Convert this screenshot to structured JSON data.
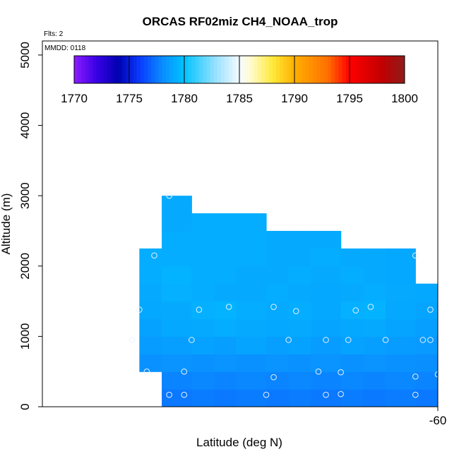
{
  "chart_data": {
    "type": "heatmap",
    "title": "ORCAS RF02miz CH4_NOAA_trop",
    "xlabel": "Latitude (deg N)",
    "ylabel": "Altitude (m)",
    "x_tick_labels": [
      "-60"
    ],
    "y_ticks": [
      0,
      1000,
      2000,
      3000,
      4000,
      5000
    ],
    "y_tick_labels": [
      "0",
      "1000",
      "2000",
      "3000",
      "4000",
      "5000"
    ],
    "ylim": [
      0,
      5200
    ],
    "xlim": [
      -65.3,
      -60
    ],
    "annotations": {
      "flights": "Flts: 2",
      "date": "MMDD: 0118"
    },
    "colorbar": {
      "ticks": [
        1770,
        1775,
        1780,
        1785,
        1790,
        1795,
        1800
      ],
      "tick_labels": [
        "1770",
        "1775",
        "1780",
        "1785",
        "1790",
        "1795",
        "1800"
      ],
      "range": [
        1770,
        1800
      ],
      "stops": [
        {
          "value": 1770,
          "color": "#8c1cff"
        },
        {
          "value": 1772,
          "color": "#3a00e6"
        },
        {
          "value": 1774,
          "color": "#0000b0"
        },
        {
          "value": 1776,
          "color": "#0a3cff"
        },
        {
          "value": 1778,
          "color": "#0a8cff"
        },
        {
          "value": 1780,
          "color": "#00c3ff"
        },
        {
          "value": 1783,
          "color": "#9fe3ff"
        },
        {
          "value": 1785,
          "color": "#f4fbff"
        },
        {
          "value": 1786,
          "color": "#fffbd0"
        },
        {
          "value": 1788,
          "color": "#ffea3a"
        },
        {
          "value": 1790,
          "color": "#ffb000"
        },
        {
          "value": 1793,
          "color": "#ff7000"
        },
        {
          "value": 1795,
          "color": "#ff0000"
        },
        {
          "value": 1798,
          "color": "#c00000"
        },
        {
          "value": 1800,
          "color": "#8e1c1c"
        }
      ]
    },
    "cells": [
      {
        "x0": -64.0,
        "x1": -63.7,
        "y0": 500,
        "y1": 2250,
        "v": 1779.2
      },
      {
        "x0": -63.7,
        "x1": -63.3,
        "y0": 0,
        "y1": 3000,
        "v": 1779.0
      },
      {
        "x0": -63.3,
        "x1": -62.3,
        "y0": 0,
        "y1": 2750,
        "v": 1779.1
      },
      {
        "x0": -62.3,
        "x1": -61.3,
        "y0": 0,
        "y1": 2500,
        "v": 1779.0
      },
      {
        "x0": -61.3,
        "x1": -60.3,
        "y0": 0,
        "y1": 2250,
        "v": 1779.0
      },
      {
        "x0": -60.3,
        "x1": -60.0,
        "y0": 0,
        "y1": 1750,
        "v": 1778.8
      },
      {
        "x0": -60.0,
        "x1": -59.7,
        "y0": 0,
        "y1": 1500,
        "v": 1778.5
      }
    ],
    "tiles": {
      "x_edges": [
        -64.0,
        -63.7,
        -63.3,
        -63.0,
        -62.7,
        -62.3,
        -62.0,
        -61.7,
        -61.3,
        -61.0,
        -60.7,
        -60.3,
        -60.0,
        -59.7
      ],
      "y_edges": [
        0,
        250,
        500,
        750,
        1000,
        1250,
        1500,
        1750,
        2000,
        2250,
        2500,
        2750,
        3000
      ],
      "values": [
        [
          null,
          1777.5,
          1777.6,
          1777.5,
          1777.6,
          1777.5,
          1777.6,
          1777.5,
          1777.6,
          1777.5,
          1777.6,
          1777.5,
          1777.4
        ],
        [
          null,
          1777.8,
          1777.9,
          1777.8,
          1777.9,
          1777.8,
          1777.9,
          1777.8,
          1777.9,
          1777.8,
          1777.9,
          1777.8,
          1777.7
        ],
        [
          1778.2,
          1778.3,
          1778.2,
          1778.3,
          1778.2,
          1778.3,
          1778.2,
          1778.3,
          1778.2,
          1778.3,
          1778.2,
          1778.1,
          1778.0
        ],
        [
          1778.6,
          1778.7,
          1778.8,
          1778.7,
          1778.9,
          1778.7,
          1778.8,
          1778.6,
          1778.8,
          1778.7,
          1778.6,
          1778.5,
          1778.4
        ],
        [
          1778.8,
          1779.0,
          1779.1,
          1779.2,
          1779.1,
          1779.0,
          1779.1,
          1778.9,
          1779.0,
          1779.1,
          1778.9,
          1778.7,
          1778.6
        ],
        [
          1779.0,
          1779.1,
          1779.3,
          1779.4,
          1779.2,
          1779.1,
          1779.2,
          1779.0,
          1779.3,
          1779.4,
          1779.0,
          1778.9,
          1778.8
        ],
        [
          1779.1,
          1779.3,
          1779.2,
          1779.1,
          1779.1,
          1779.2,
          1779.1,
          1779.0,
          1779.1,
          1779.2,
          1779.1,
          1779.0,
          null
        ],
        [
          1779.2,
          1779.4,
          1779.2,
          1779.2,
          1779.1,
          1779.1,
          1779.2,
          1779.1,
          1779.2,
          1779.1,
          1779.0,
          null,
          null
        ],
        [
          1779.2,
          1779.2,
          1779.2,
          1779.2,
          1779.2,
          1779.1,
          1779.1,
          1779.2,
          1779.1,
          1779.1,
          1779.0,
          null,
          null
        ],
        [
          null,
          1779.2,
          1779.2,
          1779.2,
          1779.2,
          1779.1,
          1779.1,
          1779.1,
          null,
          null,
          null,
          null,
          null
        ],
        [
          null,
          1779.1,
          1779.2,
          1779.2,
          1779.2,
          null,
          null,
          null,
          null,
          null,
          null,
          null,
          null
        ],
        [
          null,
          1779.1,
          null,
          null,
          null,
          null,
          null,
          null,
          null,
          null,
          null,
          null,
          null
        ]
      ]
    },
    "points": [
      {
        "x": -63.6,
        "y": 170
      },
      {
        "x": -63.4,
        "y": 170
      },
      {
        "x": -62.3,
        "y": 170
      },
      {
        "x": -61.5,
        "y": 170
      },
      {
        "x": -61.3,
        "y": 180
      },
      {
        "x": -60.3,
        "y": 170
      },
      {
        "x": -59.8,
        "y": 180
      },
      {
        "x": -62.2,
        "y": 420
      },
      {
        "x": -60.3,
        "y": 430
      },
      {
        "x": -60.0,
        "y": 460
      },
      {
        "x": -63.9,
        "y": 500
      },
      {
        "x": -63.4,
        "y": 500
      },
      {
        "x": -61.6,
        "y": 500
      },
      {
        "x": -61.3,
        "y": 490
      },
      {
        "x": -64.1,
        "y": 950
      },
      {
        "x": -63.3,
        "y": 950
      },
      {
        "x": -62.0,
        "y": 950
      },
      {
        "x": -61.5,
        "y": 950
      },
      {
        "x": -61.2,
        "y": 950
      },
      {
        "x": -60.7,
        "y": 950
      },
      {
        "x": -60.1,
        "y": 950
      },
      {
        "x": -60.2,
        "y": 950
      },
      {
        "x": -64.0,
        "y": 1380
      },
      {
        "x": -63.2,
        "y": 1380
      },
      {
        "x": -62.8,
        "y": 1420
      },
      {
        "x": -62.2,
        "y": 1420
      },
      {
        "x": -61.9,
        "y": 1360
      },
      {
        "x": -61.1,
        "y": 1370
      },
      {
        "x": -60.9,
        "y": 1420
      },
      {
        "x": -60.1,
        "y": 1380
      },
      {
        "x": -59.8,
        "y": 1420
      },
      {
        "x": -59.6,
        "y": 1340
      },
      {
        "x": -63.8,
        "y": 2150
      },
      {
        "x": -60.3,
        "y": 2150
      },
      {
        "x": -63.6,
        "y": 3000
      }
    ]
  }
}
